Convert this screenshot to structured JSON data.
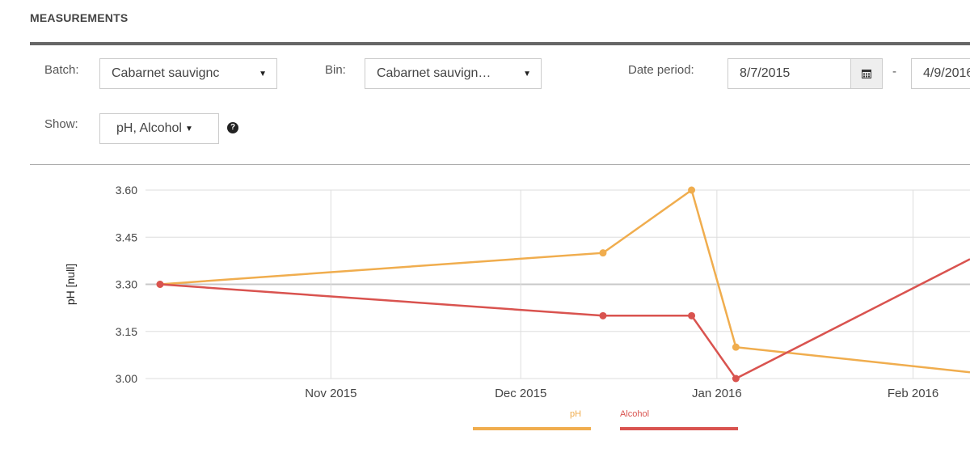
{
  "header": {
    "title": "MEASUREMENTS"
  },
  "filters": {
    "batch_label": "Batch:",
    "batch_value": "Cabarnet sauvignc",
    "bin_label": "Bin:",
    "bin_value": "Cabarnet sauvign…",
    "date_label": "Date period:",
    "date_from": "8/7/2015",
    "date_separator": "-",
    "date_to": "4/9/2016",
    "show_label": "Show:",
    "show_value": "pH, Alcohol",
    "help_glyph": "?",
    "calendar_icon": "calendar-icon"
  },
  "colors": {
    "ph": "#f0ad4e",
    "alcohol": "#d9534f",
    "grid": "#dddddd",
    "axis": "#cccccc"
  },
  "chart_data": {
    "type": "line",
    "ylabel": "pH [null]",
    "ylim": [
      3.0,
      3.6
    ],
    "yticks": [
      "3.60",
      "3.45",
      "3.30",
      "3.15",
      "3.00"
    ],
    "xticks": [
      "Nov 2015",
      "Dec 2015",
      "Jan 2016",
      "Feb 2016"
    ],
    "xlim": [
      "2015-10-05",
      "2016-02-10"
    ],
    "series": [
      {
        "name": "pH",
        "points": [
          [
            "2015-10-05",
            3.3
          ],
          [
            "2015-12-14",
            3.4
          ],
          [
            "2015-12-28",
            3.6
          ],
          [
            "2016-01-04",
            3.1
          ],
          [
            "2016-02-10",
            3.02
          ]
        ]
      },
      {
        "name": "Alcohol",
        "points": [
          [
            "2015-10-05",
            3.3
          ],
          [
            "2015-12-14",
            3.2
          ],
          [
            "2015-12-28",
            3.2
          ],
          [
            "2016-01-04",
            3.0
          ],
          [
            "2016-02-10",
            3.38
          ]
        ]
      }
    ]
  }
}
